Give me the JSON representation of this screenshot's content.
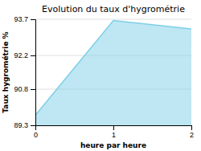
{
  "chart_data": {
    "type": "area",
    "title": "Evolution du taux d'hygrométrie",
    "xlabel": "heure par heure",
    "ylabel": "Taux hygrométrie %",
    "x": [
      0,
      1,
      2
    ],
    "values": [
      89.72,
      93.65,
      93.3
    ],
    "color": "#7ecfe8",
    "xlim": [
      0,
      2
    ],
    "ylim": [
      89.3,
      93.7
    ],
    "xticks": [
      0,
      1,
      2
    ],
    "yticks": [
      89.3,
      90.8,
      92.2,
      93.7
    ],
    "grid": true
  }
}
